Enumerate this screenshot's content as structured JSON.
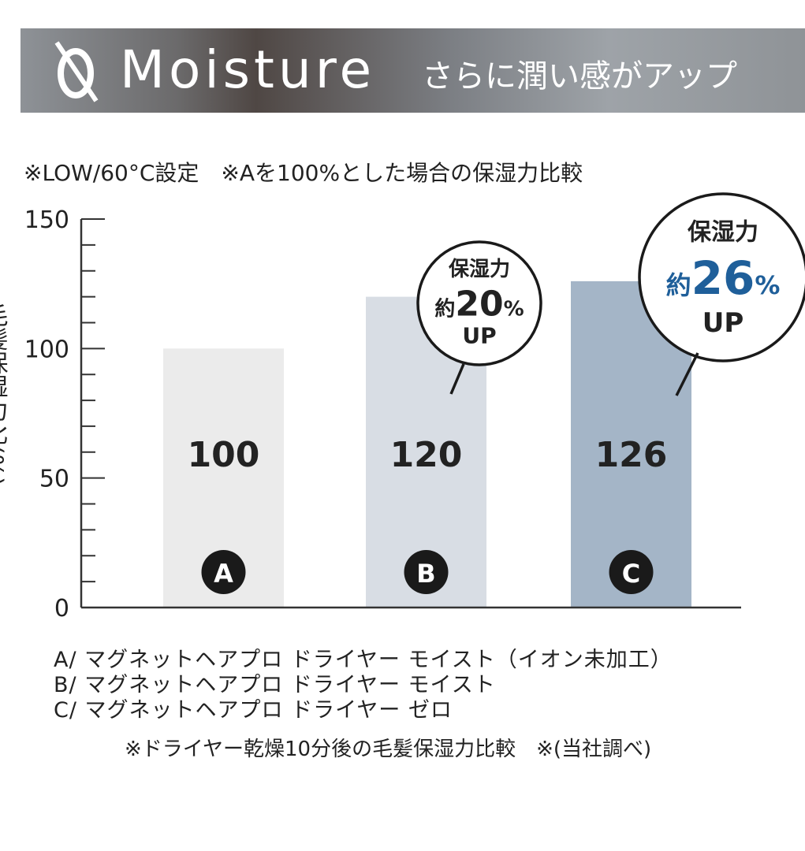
{
  "header": {
    "logo_text": "Q",
    "title": "Moisture",
    "subtitle": "さらに潤い感がアップ"
  },
  "note_top": "※LOW/60°C設定　※Aを100%とした場合の保湿力比較",
  "chart_data": {
    "type": "bar",
    "categories": [
      "A",
      "B",
      "C"
    ],
    "values": [
      100,
      120,
      126
    ],
    "ylabel": "毛髪保湿力比(%)",
    "ylim": [
      0,
      150
    ],
    "yticks": [
      0,
      50,
      100,
      150
    ],
    "minor_tick_step": 10,
    "grid": false,
    "colors": [
      "#ebebeb",
      "#d8dde4",
      "#a4b5c7"
    ],
    "callouts": [
      {
        "target": "B",
        "line1": "保湿力",
        "prefix": "約",
        "value": "20",
        "unit": "%",
        "line3": "UP",
        "color": "#222222"
      },
      {
        "target": "C",
        "line1": "保湿力",
        "prefix": "約",
        "value": "26",
        "unit": "%",
        "line3": "UP",
        "color": "#1f5f9a"
      }
    ]
  },
  "legend": [
    "A/ マグネットヘアプロ ドライヤー モイスト（イオン未加工）",
    "B/ マグネットヘアプロ ドライヤー モイスト",
    "C/ マグネットヘアプロ ドライヤー ゼロ"
  ],
  "footnote": "※ドライヤー乾燥10分後の毛髪保湿力比較　※(当社調べ)"
}
